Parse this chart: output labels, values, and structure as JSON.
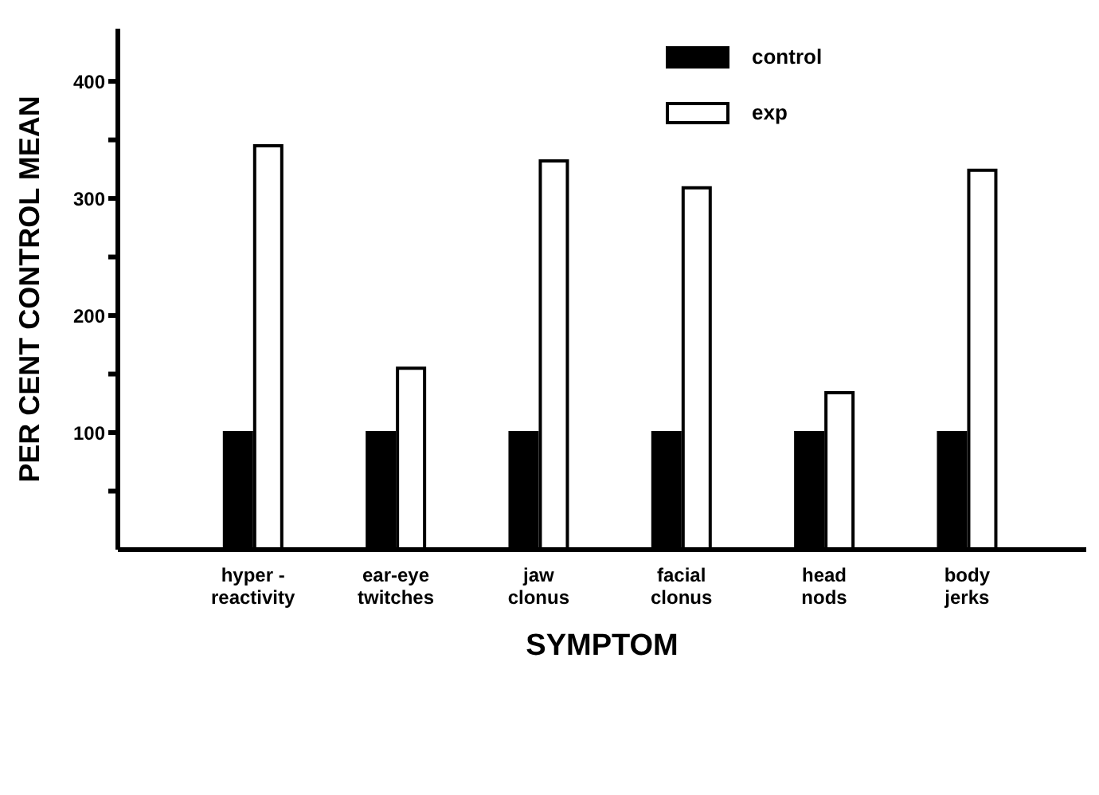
{
  "chart_data": {
    "type": "bar",
    "xlabel": "SYMPTOM",
    "ylabel": "PER CENT CONTROL MEAN",
    "categories": [
      "hyper -\nreactivity",
      "ear-eye\ntwitches",
      "jaw\nclonus",
      "facial\nclonus",
      "head\nnods",
      "body\njerks"
    ],
    "series": [
      {
        "name": "control",
        "color": "#000000",
        "values": [
          100,
          100,
          100,
          100,
          100,
          100
        ]
      },
      {
        "name": "exp",
        "color": "#ffffff",
        "values": [
          345,
          155,
          332,
          309,
          134,
          324
        ]
      }
    ],
    "ylim": [
      0,
      445
    ],
    "yticks": [
      {
        "value": 50,
        "label": null
      },
      100,
      {
        "value": 150,
        "label": null
      },
      200,
      {
        "value": 250,
        "label": null
      },
      300,
      {
        "value": 350,
        "label": null
      },
      400
    ],
    "grid": false,
    "legend": "top right"
  }
}
